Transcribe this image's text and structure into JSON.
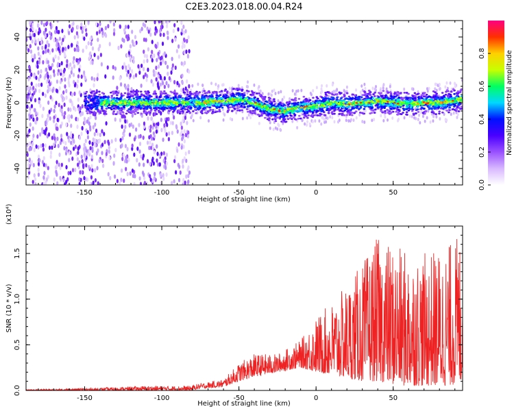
{
  "title": "C2E3.2023.018.00.04.R24",
  "chart_data": [
    {
      "type": "heatmap",
      "xlabel": "Height of straight line (km)",
      "ylabel": "Frequency (Hz)",
      "xlim": [
        -188,
        95
      ],
      "ylim": [
        -50,
        50
      ],
      "xticks": [
        -150,
        -100,
        -50,
        0,
        50
      ],
      "yticks": [
        -40,
        -20,
        0,
        20,
        40
      ],
      "colorbar": {
        "label": "Normalized spectral amplitude",
        "range": [
          0.0,
          1.0
        ],
        "ticks": [
          0.0,
          0.2,
          0.4,
          0.6,
          0.8
        ],
        "tick_labels": [
          "0.0",
          "0.2",
          "0.4",
          "0.6",
          "0.8"
        ],
        "colormap": [
          "#ffffff",
          "#d8b8ff",
          "#9a52ff",
          "#4a00ff",
          "#0010ff",
          "#00d8ff",
          "#00ff60",
          "#c8ff00",
          "#ffd000",
          "#ff3000",
          "#ff0080"
        ]
      },
      "ridge": {
        "description_values_hz_at_height": [
          {
            "x": -140,
            "y": 0
          },
          {
            "x": -120,
            "y": 0
          },
          {
            "x": -100,
            "y": 0
          },
          {
            "x": -82,
            "y": 0
          },
          {
            "x": -75,
            "y": 0
          },
          {
            "x": -60,
            "y": 1
          },
          {
            "x": -50,
            "y": 2
          },
          {
            "x": -40,
            "y": 0
          },
          {
            "x": -30,
            "y": -4
          },
          {
            "x": -20,
            "y": -5
          },
          {
            "x": -10,
            "y": -3
          },
          {
            "x": 0,
            "y": -2
          },
          {
            "x": 10,
            "y": 0
          },
          {
            "x": 20,
            "y": -1
          },
          {
            "x": 30,
            "y": 0
          },
          {
            "x": 40,
            "y": 1
          },
          {
            "x": 50,
            "y": 0
          },
          {
            "x": 60,
            "y": -1
          },
          {
            "x": 70,
            "y": 0
          },
          {
            "x": 80,
            "y": 0
          },
          {
            "x": 95,
            "y": 2
          }
        ],
        "noisy_region_xmax": -82
      }
    },
    {
      "type": "line",
      "xlabel": "Height of straight line (km)",
      "ylabel": "SNR (10 * v/v)",
      "yscale_note": "(x10⁴)",
      "xlim": [
        -188,
        95
      ],
      "ylim": [
        0,
        1.8
      ],
      "xticks": [
        -150,
        -100,
        -50,
        0,
        50
      ],
      "yticks": [
        0.0,
        0.5,
        1.0,
        1.5
      ],
      "ytick_labels": [
        "0.0",
        "0.5",
        "1.0",
        "1.5"
      ],
      "series": [
        {
          "color": "#ee2222",
          "envelope": [
            {
              "x": -188,
              "upper": 0.01,
              "lower": 0.0
            },
            {
              "x": -140,
              "upper": 0.03,
              "lower": 0.0
            },
            {
              "x": -110,
              "upper": 0.05,
              "lower": 0.0
            },
            {
              "x": -82,
              "upper": 0.05,
              "lower": 0.0
            },
            {
              "x": -75,
              "upper": 0.08,
              "lower": 0.02
            },
            {
              "x": -60,
              "upper": 0.12,
              "lower": 0.04
            },
            {
              "x": -50,
              "upper": 0.3,
              "lower": 0.1
            },
            {
              "x": -40,
              "upper": 0.4,
              "lower": 0.15
            },
            {
              "x": -25,
              "upper": 0.4,
              "lower": 0.2
            },
            {
              "x": -10,
              "upper": 0.55,
              "lower": 0.25
            },
            {
              "x": 0,
              "upper": 0.8,
              "lower": 0.2
            },
            {
              "x": 15,
              "upper": 1.05,
              "lower": 0.15
            },
            {
              "x": 30,
              "upper": 1.4,
              "lower": 0.1
            },
            {
              "x": 40,
              "upper": 1.68,
              "lower": 0.1
            },
            {
              "x": 55,
              "upper": 1.55,
              "lower": 0.05
            },
            {
              "x": 70,
              "upper": 1.5,
              "lower": 0.05
            },
            {
              "x": 85,
              "upper": 1.6,
              "lower": 0.05
            },
            {
              "x": 95,
              "upper": 1.75,
              "lower": 0.08
            }
          ]
        }
      ]
    }
  ]
}
